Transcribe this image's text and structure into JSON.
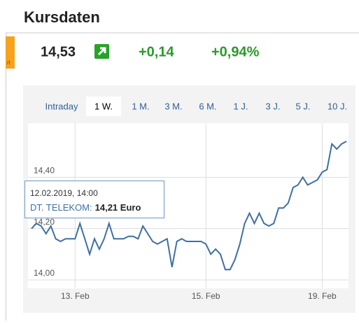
{
  "header": {
    "title": "Kursdaten"
  },
  "quote": {
    "source": "rt",
    "price": "14,53",
    "change": "+0,14",
    "change_pct": "+0,94%"
  },
  "tabs": [
    "Intraday",
    "1 W.",
    "1 M.",
    "3 M.",
    "6 M.",
    "1 J.",
    "3 J.",
    "5 J.",
    "10 J."
  ],
  "tooltip": {
    "date": "12.02.2019, 14:00",
    "name": "DT. TELEKOM:",
    "value": "14,21 Euro"
  },
  "chart_data": {
    "type": "line",
    "color": "#3f6fa5",
    "grid": true,
    "values": [
      14.2,
      14.22,
      14.21,
      14.18,
      14.21,
      14.16,
      14.15,
      14.16,
      14.16,
      14.16,
      14.22,
      14.16,
      14.1,
      14.16,
      14.12,
      14.16,
      14.22,
      14.16,
      14.16,
      14.16,
      14.17,
      14.17,
      14.16,
      14.21,
      14.18,
      14.15,
      14.14,
      14.15,
      14.16,
      14.05,
      14.15,
      14.16,
      14.15,
      14.15,
      14.15,
      14.15,
      14.14,
      14.1,
      14.12,
      14.1,
      14.04,
      14.04,
      14.08,
      14.14,
      14.22,
      14.26,
      14.22,
      14.26,
      14.22,
      14.21,
      14.22,
      14.28,
      14.28,
      14.3,
      14.36,
      14.37,
      14.4,
      14.37,
      14.38,
      14.39,
      14.42,
      14.43,
      14.53,
      14.51,
      14.53,
      14.54
    ],
    "ylim": [
      14.0,
      14.6
    ],
    "yticks": [
      {
        "value": 14.0,
        "label": "14,00"
      },
      {
        "value": 14.2,
        "label": "14,20"
      },
      {
        "value": 14.4,
        "label": "14,40"
      }
    ],
    "xticks": [
      {
        "value": 9,
        "label": "13. Feb"
      },
      {
        "value": 36,
        "label": "15. Feb"
      },
      {
        "value": 60,
        "label": "19. Feb"
      }
    ]
  }
}
